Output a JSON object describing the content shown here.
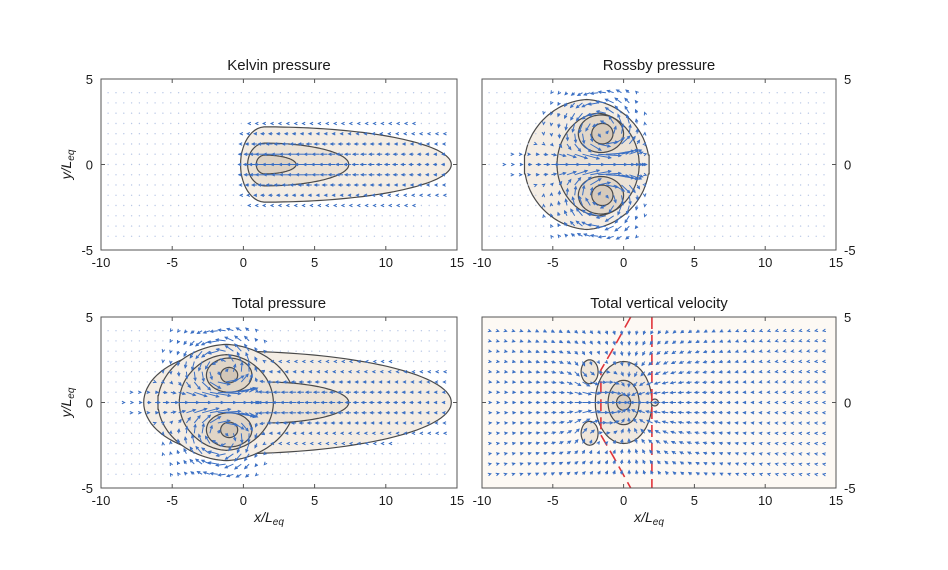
{
  "chart_data": [
    {
      "type": "contour",
      "title": "Kelvin pressure",
      "xlabel": "",
      "ylabel": "y/L_eq",
      "xlim": [
        -10,
        15
      ],
      "ylim": [
        -5,
        5
      ],
      "xticks": [
        "-10",
        "-5",
        "0",
        "5",
        "10",
        "15"
      ],
      "yticks": [
        "5",
        "0",
        "-5"
      ],
      "ytick_side": "left",
      "contour_levels": [
        {
          "x_from": -0.2,
          "x_to": 14.6,
          "half_width": 2.2,
          "peak_x": 1.5
        },
        {
          "x_from": 0.3,
          "x_to": 7.4,
          "half_width": 1.25,
          "peak_x": 1.5
        },
        {
          "x_from": 0.9,
          "x_to": 3.7,
          "half_width": 0.55,
          "peak_x": 1.5
        }
      ],
      "arrow_field": {
        "x_from": -1,
        "x_to": 15,
        "direction": "westward"
      }
    },
    {
      "type": "contour",
      "title": "Rossby pressure",
      "xlabel": "",
      "ylabel": "",
      "xlim": [
        -10,
        15
      ],
      "ylim": [
        -5,
        5
      ],
      "xticks": [
        "-10",
        "-5",
        "0",
        "5",
        "10",
        "15"
      ],
      "yticks": [
        "5",
        "0",
        "-5"
      ],
      "ytick_side": "right",
      "lobes_centers": [
        [
          -1.5,
          1.8
        ],
        [
          -1.5,
          -1.8
        ]
      ],
      "arrow_field": {
        "x_from": -10,
        "x_to": 1.5,
        "pattern": "cyclonic gyres"
      }
    },
    {
      "type": "contour",
      "title": "Total pressure",
      "xlabel": "x/L_eq",
      "ylabel": "y/L_eq",
      "xlim": [
        -10,
        15
      ],
      "ylim": [
        -5,
        5
      ],
      "xticks": [
        "-10",
        "-5",
        "0",
        "5",
        "10",
        "15"
      ],
      "yticks": [
        "5",
        "0",
        "-5"
      ],
      "ytick_side": "left",
      "lobes_centers": [
        [
          -1.0,
          1.6
        ],
        [
          -1.0,
          -1.6
        ]
      ],
      "arrow_field": {
        "x_from": -10,
        "x_to": 15,
        "pattern": "gyres plus westward tongue"
      }
    },
    {
      "type": "contour",
      "title": "Total vertical velocity",
      "xlabel": "x/L_eq",
      "ylabel": "",
      "xlim": [
        -10,
        15
      ],
      "ylim": [
        -5,
        5
      ],
      "xticks": [
        "-10",
        "-5",
        "0",
        "5",
        "10",
        "15"
      ],
      "yticks": [
        "5",
        "0",
        "-5"
      ],
      "ytick_side": "right",
      "center": [
        0,
        0
      ],
      "dashed_boundary_color": "#e0343a",
      "arrow_field": {
        "x_from": -10,
        "x_to": 15,
        "pattern": "convergence toward origin"
      }
    }
  ],
  "colors": {
    "arrow": "#3a6fc4",
    "contour": "#4a4a4a",
    "fill": "#f4ede4",
    "dot": "#b9c8e6",
    "dashed": "#e0343a",
    "panel4_bg": "#fdf9f4"
  }
}
